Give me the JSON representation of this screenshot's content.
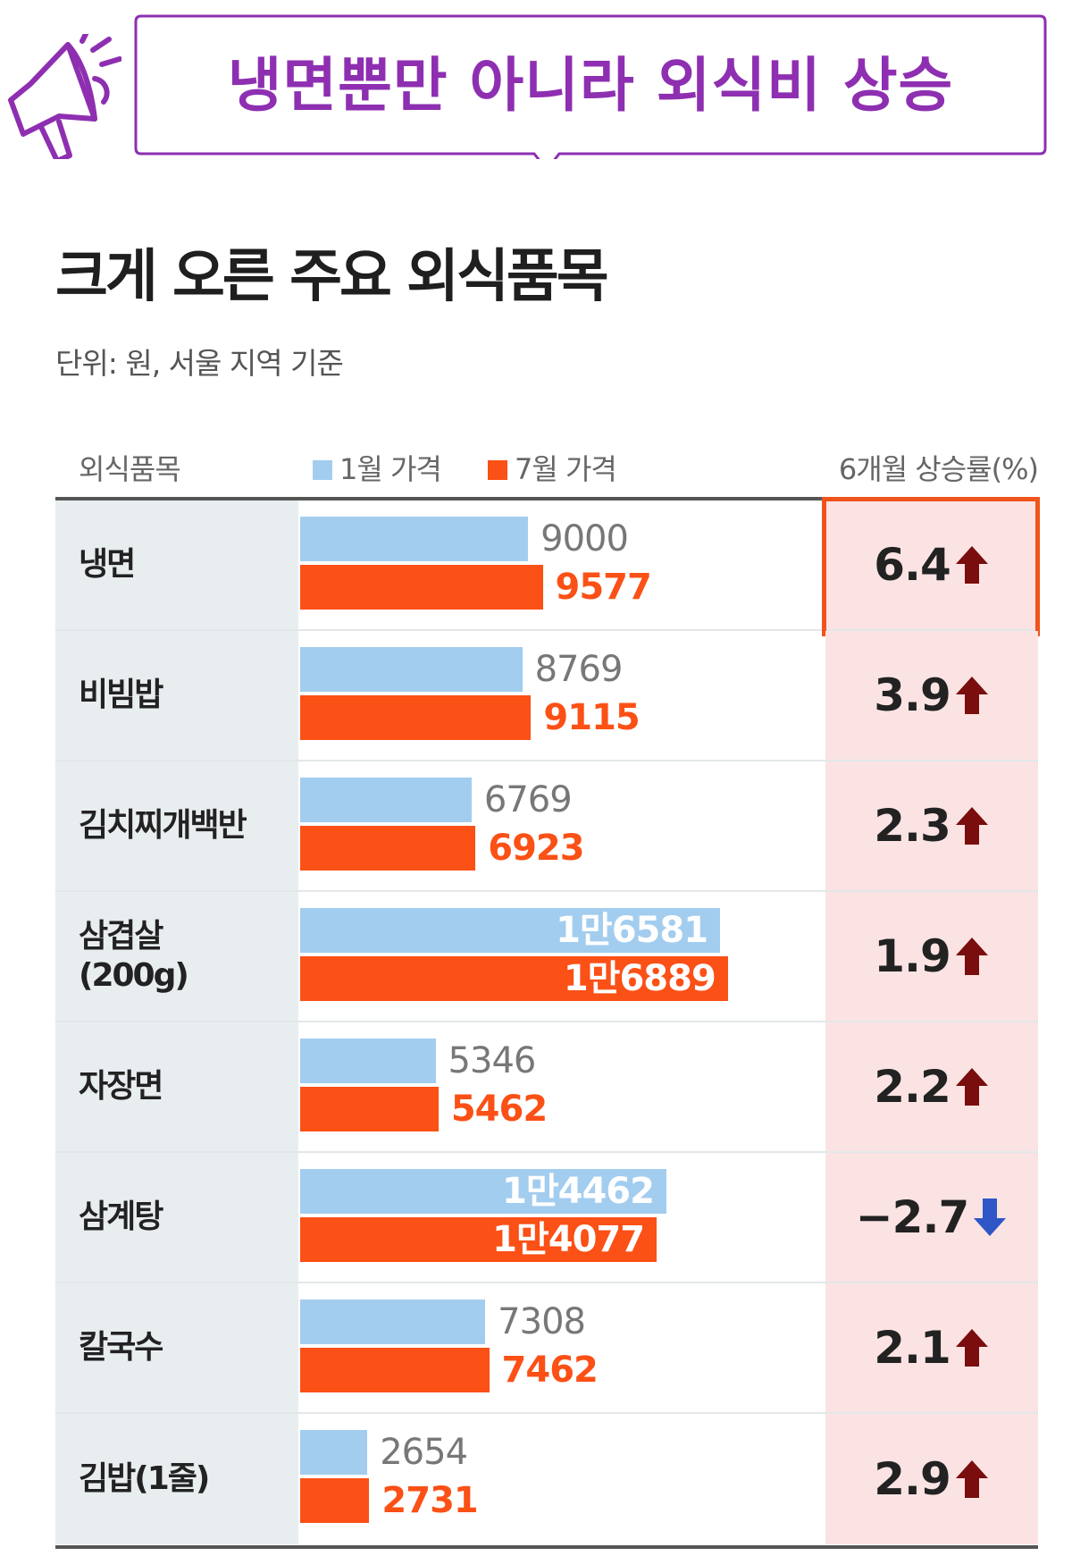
{
  "banner": {
    "title": "냉면뿐만 아니라 외식비 상승",
    "icon": "megaphone-icon"
  },
  "chart_data": {
    "type": "bar",
    "orientation": "horizontal",
    "title": "크게 오른 주요 외식품목",
    "subtitle": "단위: 원, 서울 지역 기준",
    "category_header": "외식품목",
    "rate_header": "6개월 상승률(%)",
    "categories": [
      "냉면",
      "비빔밥",
      "김치찌개백반",
      "삼겹살\n(200g)",
      "자장면",
      "삼계탕",
      "칼국수",
      "김밥(1줄)"
    ],
    "series": [
      {
        "name": "1월 가격",
        "color": "#a3cdef",
        "values": [
          9000,
          8769,
          6769,
          16581,
          5346,
          14462,
          7308,
          2654
        ],
        "labels": [
          "9000",
          "8769",
          "6769",
          "1만6581",
          "5346",
          "1만4462",
          "7308",
          "2654"
        ]
      },
      {
        "name": "7월 가격",
        "color": "#fb5016",
        "values": [
          9577,
          9115,
          6923,
          16889,
          5462,
          14077,
          7462,
          2731
        ],
        "labels": [
          "9577",
          "9115",
          "6923",
          "1만6889",
          "5462",
          "1만4077",
          "7462",
          "2731"
        ]
      }
    ],
    "change_rates": [
      {
        "value": "6.4",
        "direction": "up",
        "highlighted": true
      },
      {
        "value": "3.9",
        "direction": "up"
      },
      {
        "value": "2.3",
        "direction": "up"
      },
      {
        "value": "1.9",
        "direction": "up"
      },
      {
        "value": "2.2",
        "direction": "up"
      },
      {
        "value": "−2.7",
        "direction": "down"
      },
      {
        "value": "2.1",
        "direction": "up"
      },
      {
        "value": "2.9",
        "direction": "up"
      }
    ],
    "colors": {
      "up_arrow": "#7a0d0d",
      "down_arrow": "#2f56c6",
      "rate_cell": "#fbe3e3",
      "highlight": "#f0531c"
    }
  }
}
